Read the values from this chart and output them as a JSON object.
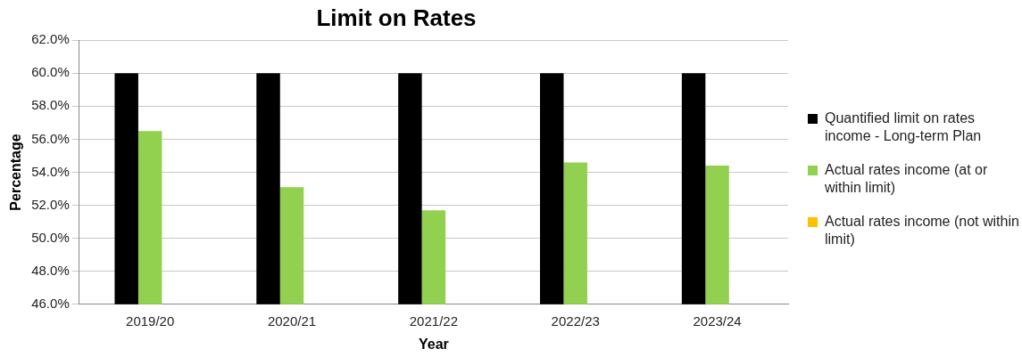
{
  "chart_data": {
    "type": "bar",
    "title": "Limit on Rates",
    "xlabel": "Year",
    "ylabel": "Percentage",
    "categories": [
      "2019/20",
      "2020/21",
      "2021/22",
      "2022/23",
      "2023/24"
    ],
    "series": [
      {
        "name": "Quantified limit on rates income - Long-term Plan",
        "color": "#000000",
        "values": [
          60.0,
          60.0,
          60.0,
          60.0,
          60.0
        ]
      },
      {
        "name": "Actual rates income (at or within limit)",
        "color": "#92d050",
        "values": [
          56.5,
          53.1,
          51.7,
          54.6,
          54.4
        ]
      },
      {
        "name": "Actual rates income (not within limit)",
        "color": "#ffc000",
        "values": [
          null,
          null,
          null,
          null,
          null
        ]
      }
    ],
    "ylim": [
      46,
      62
    ],
    "yticks": [
      {
        "value": 46,
        "label": "46.0%"
      },
      {
        "value": 48,
        "label": "48.0%"
      },
      {
        "value": 50,
        "label": "50.0%"
      },
      {
        "value": 52,
        "label": "52.0%"
      },
      {
        "value": 54,
        "label": "54.0%"
      },
      {
        "value": 56,
        "label": "56.0%"
      },
      {
        "value": 58,
        "label": "58.0%"
      },
      {
        "value": 60,
        "label": "60.0%"
      },
      {
        "value": 62,
        "label": "62.0%"
      }
    ],
    "grid": "y",
    "legend": "right"
  }
}
